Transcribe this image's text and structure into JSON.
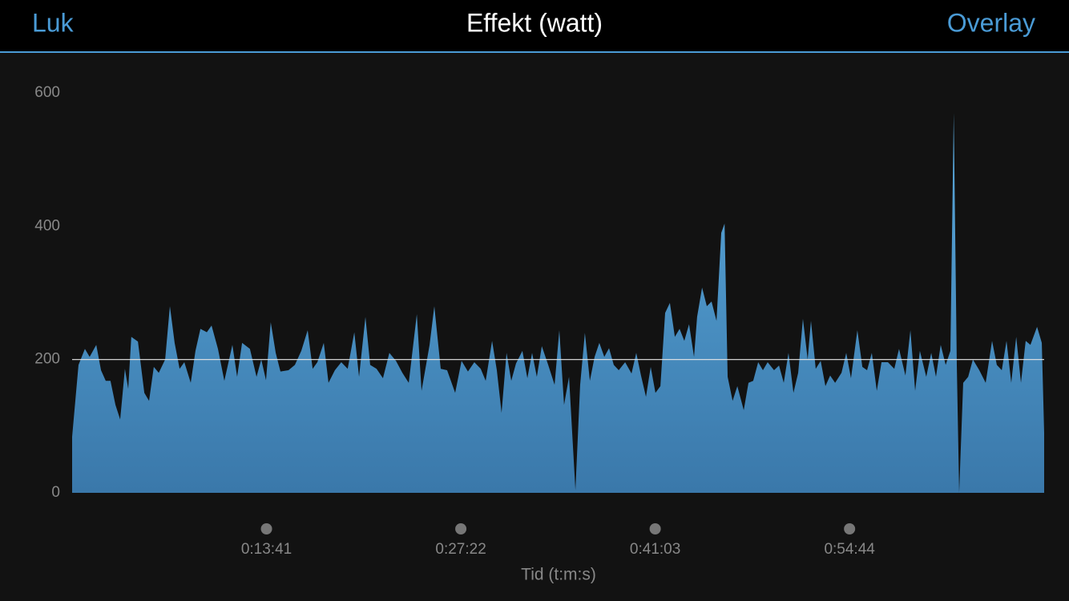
{
  "header": {
    "left_button": "Luk",
    "title": "Effekt (watt)",
    "right_button": "Overlay"
  },
  "chart_data": {
    "type": "area",
    "x_label": "Tid (t:m:s)",
    "color": "#5aa9dc",
    "reference_line": 200,
    "xlim": [
      0,
      4106
    ],
    "xticks": [
      {
        "value": 821,
        "label": "0:13:41"
      },
      {
        "value": 1642,
        "label": "0:27:22"
      },
      {
        "value": 2463,
        "label": "0:41:03"
      },
      {
        "value": 3284,
        "label": "0:54:44"
      }
    ],
    "ylim": [
      0,
      600
    ],
    "yticks": [
      0,
      200,
      400,
      600
    ],
    "x": [
      0,
      27,
      54,
      74,
      102,
      122,
      142,
      162,
      183,
      203,
      223,
      237,
      250,
      278,
      305,
      325,
      345,
      366,
      393,
      413,
      433,
      454,
      474,
      501,
      521,
      542,
      569,
      589,
      616,
      643,
      677,
      697,
      718,
      751,
      779,
      799,
      819,
      839,
      860,
      880,
      914,
      941,
      968,
      995,
      1016,
      1036,
      1063,
      1083,
      1110,
      1137,
      1164,
      1192,
      1212,
      1239,
      1259,
      1286,
      1313,
      1340,
      1368,
      1395,
      1422,
      1456,
      1476,
      1510,
      1530,
      1557,
      1584,
      1618,
      1645,
      1672,
      1699,
      1726,
      1747,
      1774,
      1794,
      1814,
      1835,
      1855,
      1875,
      1902,
      1923,
      1943,
      1963,
      1984,
      2011,
      2038,
      2058,
      2078,
      2099,
      2126,
      2146,
      2166,
      2187,
      2207,
      2227,
      2248,
      2268,
      2288,
      2309,
      2336,
      2363,
      2383,
      2403,
      2424,
      2444,
      2464,
      2485,
      2505,
      2525,
      2546,
      2566,
      2586,
      2606,
      2627,
      2640,
      2661,
      2681,
      2701,
      2722,
      2742,
      2756,
      2769,
      2790,
      2810,
      2837,
      2857,
      2877,
      2898,
      2918,
      2938,
      2965,
      2986,
      3006,
      3026,
      3047,
      3067,
      3087,
      3107,
      3121,
      3141,
      3162,
      3182,
      3202,
      3223,
      3250,
      3270,
      3290,
      3317,
      3338,
      3358,
      3378,
      3399,
      3419,
      3446,
      3473,
      3493,
      3520,
      3541,
      3561,
      3581,
      3608,
      3629,
      3649,
      3669,
      3690,
      3710,
      3724,
      3737,
      3747,
      3764,
      3785,
      3805,
      3832,
      3859,
      3886,
      3906,
      3927,
      3947,
      3967,
      3988,
      4008,
      4028,
      4048,
      4076,
      4096,
      4106
    ],
    "values": [
      84,
      192,
      216,
      204,
      222,
      184,
      168,
      168,
      132,
      110,
      186,
      156,
      234,
      227,
      150,
      138,
      189,
      180,
      200,
      280,
      225,
      186,
      196,
      165,
      213,
      246,
      241,
      251,
      216,
      168,
      222,
      174,
      225,
      216,
      174,
      200,
      169,
      256,
      210,
      182,
      184,
      192,
      213,
      244,
      186,
      196,
      225,
      165,
      184,
      196,
      186,
      241,
      174,
      264,
      192,
      186,
      172,
      210,
      198,
      180,
      165,
      268,
      153,
      222,
      280,
      186,
      184,
      150,
      198,
      182,
      196,
      186,
      168,
      228,
      184,
      120,
      210,
      168,
      194,
      213,
      172,
      210,
      174,
      220,
      192,
      162,
      244,
      132,
      174,
      4,
      162,
      240,
      168,
      204,
      225,
      204,
      217,
      192,
      184,
      196,
      179,
      210,
      176,
      144,
      189,
      150,
      160,
      270,
      285,
      234,
      246,
      228,
      253,
      204,
      264,
      308,
      280,
      287,
      258,
      390,
      404,
      174,
      138,
      160,
      124,
      165,
      168,
      196,
      184,
      196,
      184,
      191,
      165,
      210,
      150,
      180,
      261,
      200,
      258,
      186,
      198,
      160,
      176,
      165,
      180,
      210,
      172,
      244,
      189,
      184,
      210,
      153,
      196,
      196,
      186,
      216,
      176,
      244,
      153,
      213,
      174,
      210,
      174,
      222,
      192,
      213,
      570,
      192,
      0,
      165,
      174,
      200,
      184,
      165,
      228,
      192,
      184,
      228,
      165,
      234,
      165,
      228,
      222,
      249,
      225,
      90
    ]
  }
}
